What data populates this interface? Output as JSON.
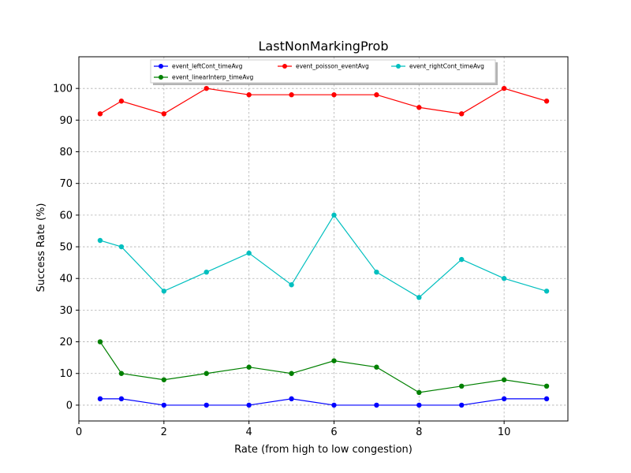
{
  "chart_data": {
    "type": "line",
    "title": "LastNonMarkingProb",
    "xlabel": "Rate (from high to low congestion)",
    "ylabel": "Success Rate (%)",
    "xlim": [
      0,
      11.5
    ],
    "ylim": [
      -5,
      110
    ],
    "xticks": [
      0,
      2,
      4,
      6,
      8,
      10
    ],
    "yticks": [
      0,
      10,
      20,
      30,
      40,
      50,
      60,
      70,
      80,
      90,
      100
    ],
    "grid": true,
    "legend_position": "top-center",
    "x": [
      0.5,
      1,
      2,
      3,
      4,
      5,
      6,
      7,
      8,
      9,
      10,
      11
    ],
    "series": [
      {
        "name": "event_leftCont_timeAvg",
        "color": "#0000ff",
        "values": [
          2,
          2,
          0,
          0,
          0,
          2,
          0,
          0,
          0,
          0,
          2,
          2
        ]
      },
      {
        "name": "event_linearInterp_timeAvg",
        "color": "#008000",
        "values": [
          20,
          10,
          8,
          10,
          12,
          10,
          14,
          12,
          4,
          6,
          8,
          6
        ]
      },
      {
        "name": "event_poisson_eventAvg",
        "color": "#ff0000",
        "values": [
          92,
          96,
          92,
          100,
          98,
          98,
          98,
          98,
          94,
          92,
          100,
          96
        ]
      },
      {
        "name": "event_rightCont_timeAvg",
        "color": "#00bfbf",
        "values": [
          52,
          50,
          36,
          42,
          48,
          38,
          60,
          42,
          34,
          46,
          40,
          36
        ]
      }
    ]
  }
}
